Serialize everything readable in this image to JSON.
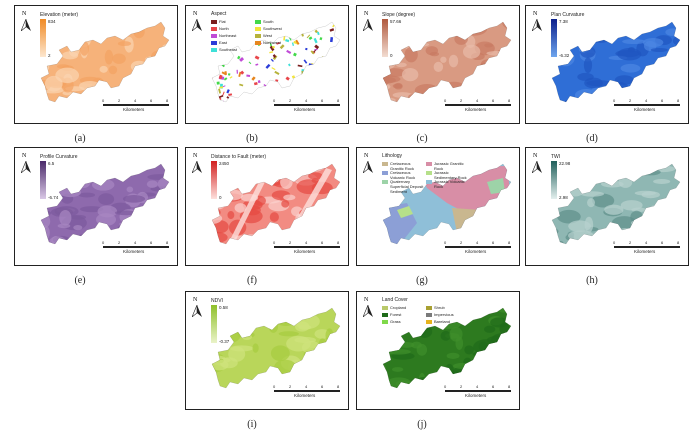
{
  "north_label": "N",
  "scale": {
    "ticks": [
      "0",
      "2",
      "4",
      "6",
      "8"
    ],
    "unit": "Kilometers"
  },
  "panels": [
    {
      "id": "a",
      "caption": "(a)",
      "title": "Elevation (meter)",
      "max": "834",
      "min": "2",
      "ramp": [
        "#f08a24",
        "#fde7cf"
      ],
      "fill": [
        "#f6b27a",
        "#fbd4b0",
        "#f4a262"
      ]
    },
    {
      "id": "b",
      "caption": "(b)",
      "title": "Aspect",
      "categories": [
        {
          "label": "Flat",
          "color": "#7a1e1e"
        },
        {
          "label": "North",
          "color": "#e8454a"
        },
        {
          "label": "Northeast",
          "color": "#c04bd6"
        },
        {
          "label": "East",
          "color": "#2b3cd8"
        },
        {
          "label": "Southeast",
          "color": "#3fe0d8"
        },
        {
          "label": "South",
          "color": "#43d84a"
        },
        {
          "label": "Southwest",
          "color": "#f3e53a"
        },
        {
          "label": "West",
          "color": "#b7b33b"
        },
        {
          "label": "Northwest",
          "color": "#e6861e"
        }
      ]
    },
    {
      "id": "c",
      "caption": "(c)",
      "title": "Slope (degree)",
      "max": "57.66",
      "min": "0",
      "ramp": [
        "#b0593d",
        "#f3ddd2"
      ],
      "fill": [
        "#d99a82",
        "#e8bba8",
        "#c97a62"
      ]
    },
    {
      "id": "d",
      "caption": "(d)",
      "title": "Plan Curvature",
      "max": "7.38",
      "min": "-6.32",
      "ramp": [
        "#0b1f8c",
        "#6fa6ee"
      ],
      "fill": [
        "#2f6ed6",
        "#4b86e2",
        "#1f55c0"
      ]
    },
    {
      "id": "e",
      "caption": "(e)",
      "title": "Profile Curvature",
      "max": "6.5",
      "min": "-6.74",
      "ramp": [
        "#4b2a6a",
        "#d9c8e6"
      ],
      "fill": [
        "#8e6aad",
        "#a887c2",
        "#7c5a9c"
      ]
    },
    {
      "id": "f",
      "caption": "(f)",
      "title": "Distance to Fault (meter)",
      "max": "2450",
      "min": "0",
      "ramp": [
        "#d21f1f",
        "#fde0dc"
      ],
      "fill": [
        "#f28b82",
        "#fbd2cd",
        "#e64a42"
      ]
    },
    {
      "id": "g",
      "caption": "(g)",
      "title": "Lithology",
      "categories": [
        {
          "label": "Cretaceous Granitic Rock",
          "color": "#c9b78f"
        },
        {
          "label": "Cretaceous Volcanic Rock",
          "color": "#8c9fd6"
        },
        {
          "label": "Quaternary Superficial Deposit Sediment",
          "color": "#9dd3a8"
        },
        {
          "label": "Jurassic Granitic Rock",
          "color": "#d88ea6"
        },
        {
          "label": "Jurassic Sedimentary Rock",
          "color": "#b6e08a"
        },
        {
          "label": "Jurassic Volcanic Rock",
          "color": "#8fbfd8"
        }
      ]
    },
    {
      "id": "h",
      "caption": "(h)",
      "title": "TWI",
      "max": "22.98",
      "min": "2.98",
      "ramp": [
        "#1f5f5a",
        "#e3efee"
      ],
      "fill": [
        "#8fb7b3",
        "#b8d2cf",
        "#5e8f8a"
      ]
    },
    {
      "id": "i",
      "caption": "(i)",
      "title": "NDVI",
      "max": "0.58",
      "min": "-0.37",
      "ramp": [
        "#8fc02a",
        "#eaf3c8"
      ],
      "fill": [
        "#b9d65a",
        "#cfe27c",
        "#a7cc3e"
      ]
    },
    {
      "id": "j",
      "caption": "(j)",
      "title": "Land Cover",
      "categories": [
        {
          "label": "Cropland",
          "color": "#b9c96a"
        },
        {
          "label": "Forest",
          "color": "#1f6b1a"
        },
        {
          "label": "Grass",
          "color": "#7fd94a"
        },
        {
          "label": "Shrub",
          "color": "#a8a031"
        },
        {
          "label": "Impervious",
          "color": "#7a7a7a"
        },
        {
          "label": "Bareland",
          "color": "#e6b31e"
        }
      ],
      "fill": [
        "#2d7a1f",
        "#3f8f2b",
        "#1f6b1a"
      ]
    }
  ]
}
